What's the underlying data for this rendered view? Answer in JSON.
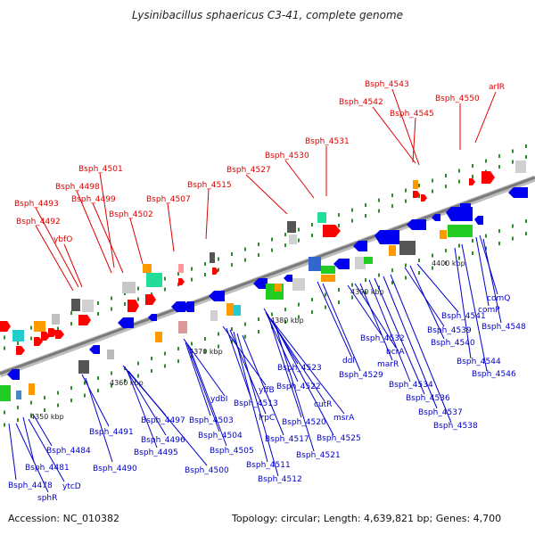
{
  "title": "Lysinibacillus sphaericus C3-41, complete genome",
  "accession": "Accession: NC_010382",
  "topology": "Topology: circular; Length: 4,639,821 bp; Genes: 4,700",
  "colors": {
    "forward_label": "#e00000",
    "reverse_label": "#0000cc",
    "forward_arrow": "#ff0000",
    "reverse_arrow": "#0000ee",
    "backbone": "#888888",
    "gc_dot": "#2e8b2e"
  },
  "ruler": [
    "4350 kbp",
    "4360 kbp",
    "4370 kbp",
    "4380 kbp",
    "4390 kbp",
    "4400 kbp"
  ],
  "top_labels": [
    "Bsph_4492",
    "Bsph_4493",
    "ybfO",
    "Bsph_4498",
    "Bsph_4499",
    "Bsph_4501",
    "Bsph_4502",
    "Bsph_4507",
    "Bsph_4515",
    "Bsph_4527",
    "Bsph_4530",
    "Bsph_4531",
    "Bsph_4542",
    "Bsph_4543",
    "Bsph_4545",
    "Bsph_4550",
    "arlR"
  ],
  "bottom_labels": [
    "Bsph_4478",
    "sphR",
    "Bsph_4481",
    "ytcD",
    "Bsph_4484",
    "Bsph_4491",
    "Bsph_4490",
    "Bsph_4497",
    "Bsph_4496",
    "Bsph_4495",
    "Bsph_4500",
    "ydbI",
    "Bsph_4503",
    "Bsph_4504",
    "Bsph_4505",
    "yffB",
    "Bsph_4513",
    "lrpC",
    "Bsph_4511",
    "Bsph_4512",
    "Bsph_4517",
    "Bsph_4523",
    "Bsph_4522",
    "Bsph_4520",
    "cutR",
    "msrA",
    "Bsph_4525",
    "Bsph_4521",
    "ddl",
    "Bsph_4529",
    "Bsph_4532",
    "bcrA",
    "marR",
    "Bsph_4534",
    "Bsph_4536",
    "Bsph_4537",
    "Bsph_4538",
    "Bsph_4539",
    "Bsph_4540",
    "Bsph_4541",
    "comP",
    "comQ",
    "Bsph_4548",
    "Bsph_4544",
    "Bsph_4546"
  ]
}
